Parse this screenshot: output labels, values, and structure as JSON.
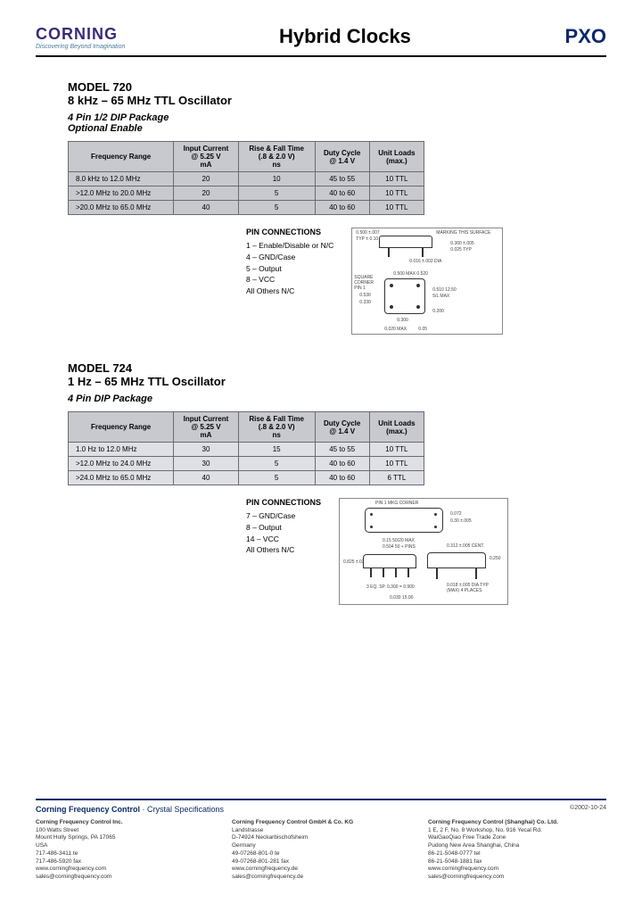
{
  "brand": {
    "name": "CORNING",
    "tagline": "Discovering Beyond Imagination",
    "name_color": "#3a2a7a",
    "tagline_color": "#4a7a9a"
  },
  "header": {
    "title": "Hybrid Clocks",
    "code": "PXO",
    "code_color": "#0b2a6b"
  },
  "model720": {
    "model": "MODEL 720",
    "subtitle": "8 kHz – 65 MHz TTL Oscillator",
    "package": "4 Pin 1/2 DIP Package",
    "optional": "Optional Enable",
    "table": {
      "header_bg": "#c8c9cf",
      "body_bg": "#c8c9cf",
      "columns": [
        "Frequency Range",
        "Input Current\n@ 5.25 V\nmA",
        "Rise & Fall Time\n(.8 & 2.0 V)\nns",
        "Duty Cycle\n@ 1.4 V",
        "Unit Loads\n(max.)"
      ],
      "rows": [
        [
          "8.0 kHz to 12.0 MHz",
          "20",
          "10",
          "45 to 55",
          "10 TTL"
        ],
        [
          ">12.0 MHz to 20.0 MHz",
          "20",
          "5",
          "40 to 60",
          "10 TTL"
        ],
        [
          ">20.0 MHz to 65.0 MHz",
          "40",
          "5",
          "40 to 60",
          "10 TTL"
        ]
      ]
    },
    "pins": {
      "title": "PIN CONNECTIONS",
      "items": [
        "1 – Enable/Disable or N/C",
        "4 – GND/Case",
        "5 – Output",
        "8 – VCC",
        "All Others N/C"
      ]
    },
    "diagram_labels": [
      "0.500 ±.007",
      "TYP ± 0.10",
      "MARKING THIS SURFACE",
      "0.300 ±.005",
      "0.025 TYP",
      "0.016 ±.002 DIA",
      "SQUARE CORNER PIN 1",
      "0.500 MAX 0.520",
      "0.530",
      "0.330",
      "0.510 12.50",
      "5/L MAX",
      "0.200",
      "0.300",
      "0.020 MAX",
      "0.05"
    ]
  },
  "model724": {
    "model": "MODEL 724",
    "subtitle": "1 Hz – 65 MHz TTL Oscillator",
    "package": "4 Pin DIP Package",
    "table": {
      "header_bg": "#c8c9cf",
      "body_bg": "#dfe0e5",
      "columns": [
        "Frequency Range",
        "Input Current\n@ 5.25 V\nmA",
        "Rise & Fall Time\n(.8 & 2.0 V)\nns",
        "Duty Cycle\n@ 1.4 V",
        "Unit Loads\n(max.)"
      ],
      "rows": [
        [
          "1.0 Hz to 12.0 MHz",
          "30",
          "15",
          "45 to 55",
          "10 TTL"
        ],
        [
          ">12.0 MHz to 24.0 MHz",
          "30",
          "5",
          "40 to 60",
          "10 TTL"
        ],
        [
          ">24.0 MHz to 65.0 MHz",
          "40",
          "5",
          "40 to 60",
          "6 TTL"
        ]
      ]
    },
    "pins": {
      "title": "PIN CONNECTIONS",
      "items": [
        "7 – GND/Case",
        "8 – Output",
        "14 – VCC",
        "All Others N/C"
      ]
    },
    "diagram_labels": [
      "PIN 1 MKG CORNER",
      "0.072",
      "0.30 ±.005",
      "0.15 50/20 MAX",
      "0.504 50 + PINS",
      "0.312 ±.005 CENT.",
      "0.825 ±.025",
      "3 EQ. SP. 0.300 = 0.900",
      "0.250",
      "0.018 ±.005 DIA TYP (MAX) 4 PLACES",
      "0.030 15.00"
    ]
  },
  "footer": {
    "head_bold": "Corning Frequency Control",
    "head_light": " · Crystal Specifications",
    "date": "©2002-10-24",
    "cols": [
      {
        "name": "Corning Frequency Control Inc.",
        "lines": [
          "100 Watts Street",
          "Mount Holly Springs, PA 17065",
          "USA",
          "717-486-3411 te",
          "717-486-5920 fax",
          "www.corningfrequency.com",
          "sales@corningfrequency.com"
        ]
      },
      {
        "name": "Corning Frequency Control GmbH & Co. KG",
        "lines": [
          "Landstrasse",
          "D-74924 Neckarbischofsheim",
          "Germany",
          "49-07268-801-0 te",
          "49-07268-801-281 fax",
          "www.corningfrequency.de",
          "sales@corningfrequency.de"
        ]
      },
      {
        "name": "Corning Frequency Control (Shanghai) Co. Ltd.",
        "lines": [
          "1 E, 2 F, No. 8 Workshop, No. 916 Yecal Rd.",
          "WaiGaoQiao Free Trade Zone",
          "Pudong New Area Shanghai, China",
          "86-21-5048-0777 tel",
          "86-21-5048-1881 fax",
          "www.corningfrequency.com",
          "sales@corningfrequency.com"
        ]
      }
    ]
  }
}
